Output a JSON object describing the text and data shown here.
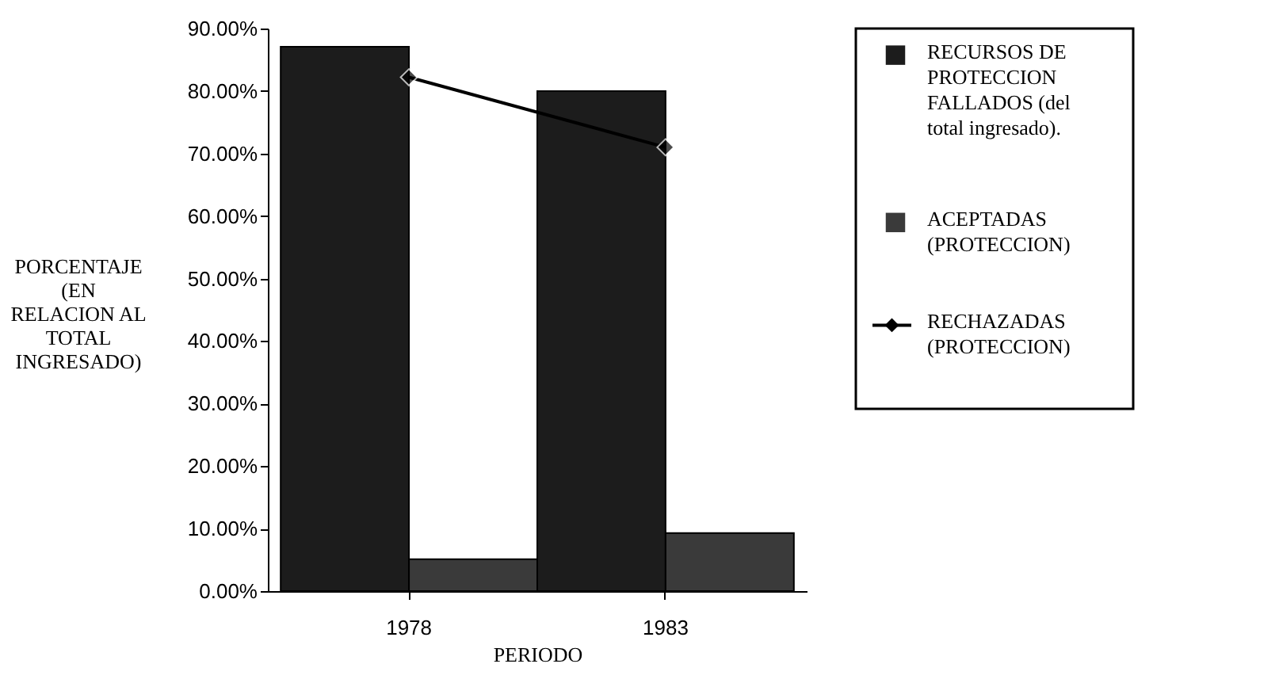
{
  "chart_data": {
    "type": "bar",
    "categories": [
      "1978",
      "1983"
    ],
    "xlabel": "PERIODO",
    "ylabel": "PORCENTAJE (EN RELACION AL TOTAL INGRESADO)",
    "ylim": [
      0,
      90
    ],
    "yticks": [
      {
        "value": 0,
        "label": "0.00%"
      },
      {
        "value": 10,
        "label": "10.00%"
      },
      {
        "value": 20,
        "label": "20.00%"
      },
      {
        "value": 30,
        "label": "30.00%"
      },
      {
        "value": 40,
        "label": "40.00%"
      },
      {
        "value": 50,
        "label": "50.00%"
      },
      {
        "value": 60,
        "label": "60.00%"
      },
      {
        "value": 70,
        "label": "70.00%"
      },
      {
        "value": 80,
        "label": "80.00%"
      },
      {
        "value": 90,
        "label": "90.00%"
      }
    ],
    "series": [
      {
        "name": "RECURSOS DE PROTECCION FALLADOS (del total ingresado).",
        "color": "#1c1c1c",
        "values": [
          87.1,
          80.0
        ]
      },
      {
        "name": "ACEPTADAS (PROTECCION)",
        "color": "#3a3a3a",
        "values": [
          5.1,
          9.3
        ]
      },
      {
        "name": "RECHAZADAS (PROTECCION)",
        "type": "line",
        "color": "#000000",
        "values": [
          82.2,
          71.0
        ],
        "marker": "diamond"
      }
    ],
    "legend": "right",
    "grid": false
  }
}
